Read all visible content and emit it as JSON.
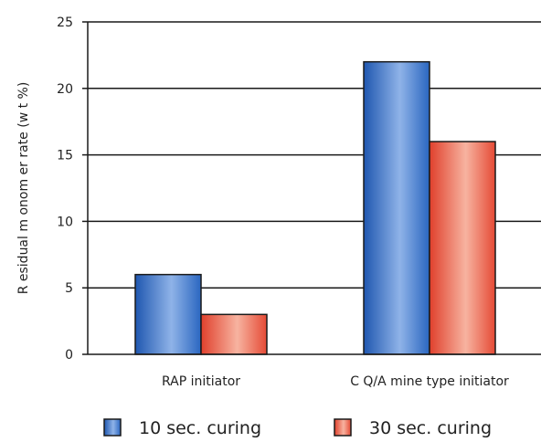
{
  "chart_data": {
    "type": "bar",
    "title": "",
    "xlabel": "",
    "ylabel": "R esidual m onom er rate (w t %)",
    "ylim": [
      0,
      25
    ],
    "yticks": [
      0,
      5,
      10,
      15,
      20,
      25
    ],
    "grid": true,
    "legend_position": "bottom",
    "categories": [
      "RAP initiator",
      "C Q/A mine type initiator"
    ],
    "series": [
      {
        "name": "10 sec. curing",
        "values": [
          6,
          22
        ],
        "color": "#2f6fc4"
      },
      {
        "name": "30 sec. curing",
        "values": [
          3,
          16
        ],
        "color": "#e8503a"
      }
    ]
  }
}
